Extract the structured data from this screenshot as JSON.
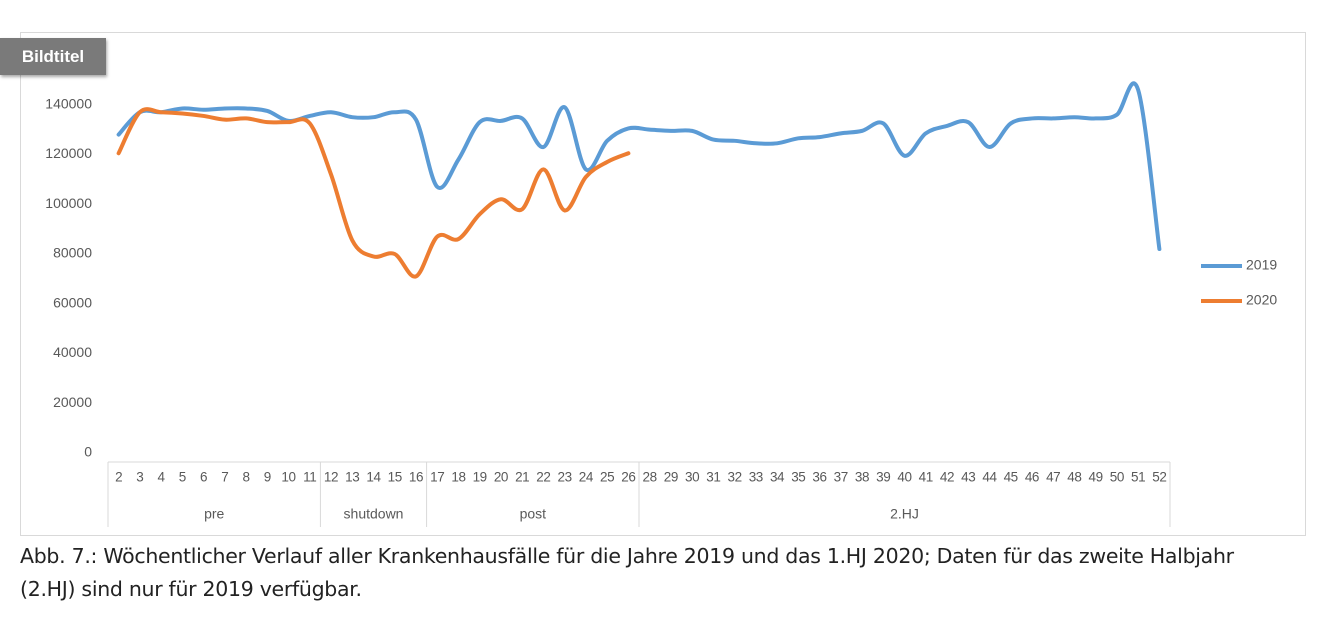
{
  "badge": "Bildtitel",
  "caption": "Abb. 7.: Wöchentlicher Verlauf aller Krankenhausfälle für die Jahre 2019 und das 1.HJ 2020; Daten für das zweite Halbjahr (2.HJ) sind nur für 2019 verfügbar.",
  "chart_data": {
    "type": "line",
    "categories": [
      "2",
      "3",
      "4",
      "5",
      "6",
      "7",
      "8",
      "9",
      "10",
      "11",
      "12",
      "13",
      "14",
      "15",
      "16",
      "17",
      "18",
      "19",
      "20",
      "21",
      "22",
      "23",
      "24",
      "25",
      "26",
      "28",
      "29",
      "30",
      "31",
      "32",
      "33",
      "34",
      "35",
      "36",
      "37",
      "38",
      "39",
      "40",
      "41",
      "42",
      "43",
      "44",
      "45",
      "46",
      "47",
      "48",
      "49",
      "50",
      "51",
      "52"
    ],
    "groups": [
      {
        "name": "pre",
        "from": "2",
        "to": "11"
      },
      {
        "name": "shutdown",
        "from": "12",
        "to": "16"
      },
      {
        "name": "post",
        "from": "17",
        "to": "26"
      },
      {
        "name": "2.HJ",
        "from": "28",
        "to": "52"
      }
    ],
    "series": [
      {
        "name": "2019",
        "color": "#5b9bd5",
        "values": [
          128000,
          137000,
          137000,
          138500,
          138000,
          138500,
          138500,
          137500,
          133500,
          135500,
          137000,
          135000,
          135000,
          137000,
          134000,
          107000,
          118000,
          133000,
          133500,
          134500,
          123000,
          139000,
          114000,
          125500,
          130500,
          130000,
          129500,
          129500,
          126000,
          125500,
          124500,
          124500,
          126500,
          127000,
          128500,
          129500,
          132500,
          119500,
          128500,
          131500,
          133000,
          123000,
          132500,
          134500,
          134500,
          135000,
          134500,
          136000,
          146000,
          82000
        ]
      },
      {
        "name": "2020",
        "color": "#ed7d31",
        "values": [
          120500,
          137000,
          137000,
          136500,
          135500,
          134000,
          134500,
          133000,
          133000,
          132500,
          112000,
          85500,
          79000,
          80000,
          71000,
          87000,
          86000,
          96000,
          102000,
          98000,
          114000,
          97500,
          111000,
          117000,
          120500,
          null,
          null,
          null,
          null,
          null,
          null,
          null,
          null,
          null,
          null,
          null,
          null,
          null,
          null,
          null,
          null,
          null,
          null,
          null,
          null,
          null,
          null,
          null,
          null,
          null
        ]
      }
    ],
    "ylim": [
      0,
      160000
    ],
    "yticks": [
      0,
      20000,
      40000,
      60000,
      80000,
      100000,
      120000,
      140000
    ],
    "grid": false,
    "legend": "right"
  }
}
